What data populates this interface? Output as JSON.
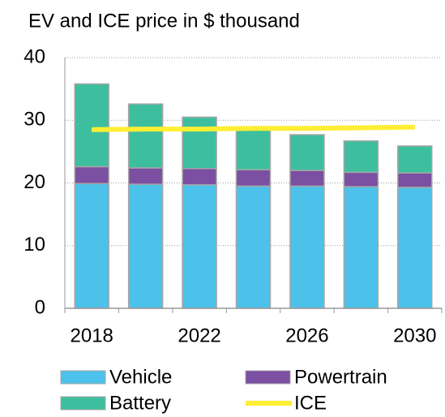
{
  "chart_data": {
    "type": "stacked_bar_line",
    "title": "EV and ICE price in $ thousand",
    "categories": [
      "2018",
      null,
      "2022",
      null,
      "2026",
      null,
      "2030"
    ],
    "series": [
      {
        "name": "Vehicle",
        "color": "#4cc2ea",
        "values": [
          19.9,
          19.8,
          19.7,
          19.5,
          19.5,
          19.4,
          19.3
        ]
      },
      {
        "name": "Powertrain",
        "color": "#7b4fa1",
        "values": [
          2.7,
          2.6,
          2.6,
          2.6,
          2.5,
          2.3,
          2.3
        ]
      },
      {
        "name": "Battery",
        "color": "#3dbf9f",
        "values": [
          13.2,
          10.2,
          8.2,
          6.8,
          5.7,
          5.0,
          4.3
        ]
      },
      {
        "name": "ICE",
        "color": "#ffee33",
        "type": "line",
        "values": [
          28.5,
          28.6,
          28.6,
          28.7,
          28.7,
          28.8,
          28.9
        ]
      }
    ],
    "ylim": [
      0,
      40
    ],
    "yticks": [
      0,
      10,
      20,
      30,
      40
    ],
    "grid": true
  }
}
